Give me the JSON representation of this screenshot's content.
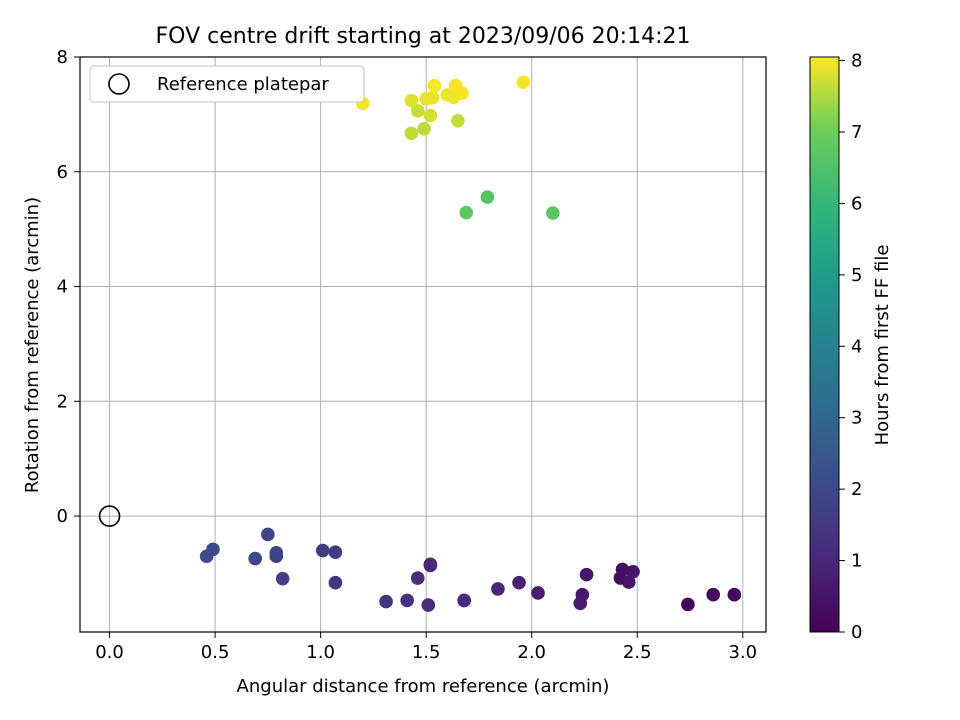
{
  "chart_data": {
    "type": "scatter",
    "title": "FOV centre drift starting at 2023/09/06 20:14:21",
    "xlabel": "Angular distance from reference (arcmin)",
    "ylabel": "Rotation from reference (arcmin)",
    "xlim": [
      -0.14,
      3.11
    ],
    "ylim": [
      -2.02,
      8.0
    ],
    "xticks": [
      0.0,
      0.5,
      1.0,
      1.5,
      2.0,
      2.5,
      3.0
    ],
    "xtick_labels": [
      "0.0",
      "0.5",
      "1.0",
      "1.5",
      "2.0",
      "2.5",
      "3.0"
    ],
    "yticks": [
      0,
      2,
      4,
      6,
      8
    ],
    "ytick_labels": [
      "0",
      "2",
      "4",
      "6",
      "8"
    ],
    "grid": true,
    "legend": {
      "placement": "top-left",
      "entries": [
        "Reference platepar"
      ]
    },
    "reference_point": {
      "x": 0.0,
      "y": 0.0
    },
    "colorbar": {
      "label": "Hours from first FF file",
      "colormap": "viridis",
      "min": 0,
      "max": 8.05,
      "ticks": [
        0,
        1,
        2,
        3,
        4,
        5,
        6,
        7,
        8
      ],
      "tick_labels": [
        "0",
        "1",
        "2",
        "3",
        "4",
        "5",
        "6",
        "7",
        "8"
      ]
    },
    "points": [
      {
        "x": 2.74,
        "y": -1.54,
        "c": 0.1
      },
      {
        "x": 2.86,
        "y": -1.37,
        "c": 0.2
      },
      {
        "x": 2.96,
        "y": -1.37,
        "c": 0.15
      },
      {
        "x": 2.42,
        "y": -1.08,
        "c": 0.35
      },
      {
        "x": 2.43,
        "y": -0.93,
        "c": 0.4
      },
      {
        "x": 2.46,
        "y": -1.15,
        "c": 0.45
      },
      {
        "x": 2.48,
        "y": -0.97,
        "c": 0.5
      },
      {
        "x": 2.26,
        "y": -1.02,
        "c": 0.55
      },
      {
        "x": 2.24,
        "y": -1.37,
        "c": 0.6
      },
      {
        "x": 2.23,
        "y": -1.52,
        "c": 0.65
      },
      {
        "x": 2.03,
        "y": -1.34,
        "c": 0.75
      },
      {
        "x": 1.94,
        "y": -1.16,
        "c": 0.85
      },
      {
        "x": 1.84,
        "y": -1.27,
        "c": 0.9
      },
      {
        "x": 1.68,
        "y": -1.47,
        "c": 0.95
      },
      {
        "x": 1.68,
        "y": -1.47,
        "c": 1.2
      },
      {
        "x": 1.52,
        "y": -0.86,
        "c": 1.0
      },
      {
        "x": 1.52,
        "y": -0.84,
        "c": 1.05
      },
      {
        "x": 1.51,
        "y": -1.55,
        "c": 1.1
      },
      {
        "x": 1.46,
        "y": -1.08,
        "c": 1.15
      },
      {
        "x": 1.41,
        "y": -1.47,
        "c": 1.3
      },
      {
        "x": 1.31,
        "y": -1.49,
        "c": 1.4
      },
      {
        "x": 1.07,
        "y": -1.16,
        "c": 1.5
      },
      {
        "x": 1.07,
        "y": -0.63,
        "c": 1.6
      },
      {
        "x": 1.01,
        "y": -0.6,
        "c": 1.65
      },
      {
        "x": 0.82,
        "y": -1.09,
        "c": 1.75
      },
      {
        "x": 0.79,
        "y": -0.7,
        "c": 1.8
      },
      {
        "x": 0.79,
        "y": -0.64,
        "c": 1.85
      },
      {
        "x": 0.75,
        "y": -0.32,
        "c": 1.9
      },
      {
        "x": 0.69,
        "y": -0.74,
        "c": 1.95
      },
      {
        "x": 0.49,
        "y": -0.58,
        "c": 2.0
      },
      {
        "x": 0.46,
        "y": -0.7,
        "c": 2.05
      },
      {
        "x": 1.69,
        "y": 5.29,
        "c": 6.8
      },
      {
        "x": 1.79,
        "y": 5.56,
        "c": 6.6
      },
      {
        "x": 2.1,
        "y": 5.28,
        "c": 6.7
      },
      {
        "x": 1.43,
        "y": 6.67,
        "c": 7.6
      },
      {
        "x": 1.49,
        "y": 6.75,
        "c": 7.6
      },
      {
        "x": 1.65,
        "y": 6.89,
        "c": 7.65
      },
      {
        "x": 1.46,
        "y": 7.06,
        "c": 7.7
      },
      {
        "x": 1.52,
        "y": 6.98,
        "c": 7.75
      },
      {
        "x": 1.2,
        "y": 7.19,
        "c": 7.95
      },
      {
        "x": 1.43,
        "y": 7.24,
        "c": 7.85
      },
      {
        "x": 1.5,
        "y": 7.27,
        "c": 7.9
      },
      {
        "x": 1.53,
        "y": 7.29,
        "c": 7.9
      },
      {
        "x": 1.6,
        "y": 7.34,
        "c": 7.95
      },
      {
        "x": 1.63,
        "y": 7.3,
        "c": 7.95
      },
      {
        "x": 1.67,
        "y": 7.37,
        "c": 8.0
      },
      {
        "x": 1.54,
        "y": 7.5,
        "c": 8.0
      },
      {
        "x": 1.64,
        "y": 7.5,
        "c": 8.0
      },
      {
        "x": 1.96,
        "y": 7.56,
        "c": 8.0
      }
    ]
  }
}
